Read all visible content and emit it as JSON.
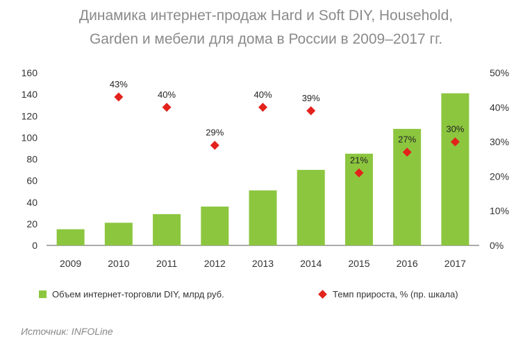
{
  "title_line1": "Динамика интернет-продаж Hard и Soft DIY, Household,",
  "title_line2": "Garden и мебели для дома в России в 2009–2017 гг.",
  "source": "Источник: INFOLine",
  "colors": {
    "bar": "#8cc63f",
    "marker": "#e3221c",
    "axis": "#555555",
    "title": "#8a8a8a"
  },
  "chart_data": {
    "type": "bar",
    "categories": [
      "2009",
      "2010",
      "2011",
      "2012",
      "2013",
      "2014",
      "2015",
      "2016",
      "2017"
    ],
    "series": [
      {
        "name": "Объем интернет-торговли DIY, млрд руб.",
        "type": "bar",
        "axis": "left",
        "values": [
          15,
          21,
          29,
          36,
          51,
          70,
          85,
          108,
          141
        ]
      },
      {
        "name": "Темп прироста, % (пр. шкала)",
        "type": "scatter",
        "axis": "right",
        "values": [
          null,
          43,
          40,
          29,
          40,
          39,
          21,
          27,
          30
        ],
        "labels": [
          "",
          "43%",
          "40%",
          "29%",
          "40%",
          "39%",
          "21%",
          "27%",
          "30%"
        ]
      }
    ],
    "ylim_left": [
      0,
      160
    ],
    "yticks_left": [
      "0",
      "20",
      "40",
      "60",
      "80",
      "100",
      "120",
      "140",
      "160"
    ],
    "ylim_right": [
      0,
      50
    ],
    "yticks_right": [
      "0%",
      "10%",
      "20%",
      "30%",
      "40%",
      "50%"
    ],
    "grid": false,
    "legend_position": "bottom"
  }
}
